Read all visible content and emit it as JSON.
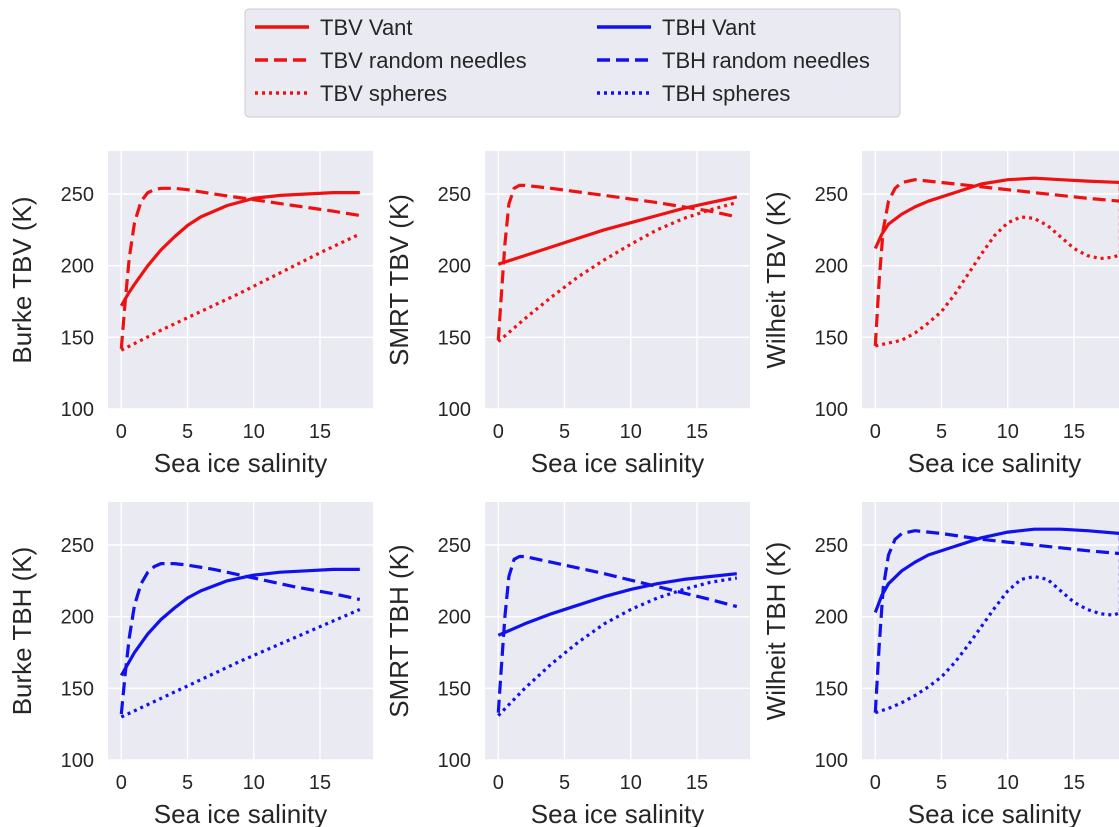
{
  "colors": {
    "TBV": "#ee1111",
    "TBH": "#1111ee",
    "axes_bg": "#eaeaf2",
    "grid": "#ffffff",
    "text": "#262626",
    "legend_bg": "#eaeaf2"
  },
  "legend": {
    "placement": "top-center",
    "entries": [
      {
        "label": "TBV Vant",
        "color": "#ee1111",
        "style": "solid"
      },
      {
        "label": "TBH Vant",
        "color": "#1111ee",
        "style": "solid"
      },
      {
        "label": "TBV random needles",
        "color": "#ee1111",
        "style": "dashed"
      },
      {
        "label": "TBH random needles",
        "color": "#1111ee",
        "style": "dashed"
      },
      {
        "label": "TBV spheres",
        "color": "#ee1111",
        "style": "dotted"
      },
      {
        "label": "TBH spheres",
        "color": "#1111ee",
        "style": "dotted"
      }
    ]
  },
  "chart_data": [
    {
      "type": "line",
      "xlabel": "Sea ice salinity",
      "ylabel": "Burke TBV (K)",
      "xlim": [
        -1,
        19
      ],
      "ylim": [
        100,
        280
      ],
      "xticks": [
        0,
        5,
        10,
        15
      ],
      "yticks": [
        100,
        150,
        200,
        250
      ],
      "grid": true,
      "series": [
        {
          "name": "TBV Vant",
          "color": "#ee1111",
          "style": "solid",
          "x": [
            0,
            0.5,
            1,
            2,
            3,
            4,
            5,
            6,
            8,
            10,
            12,
            14,
            16,
            18
          ],
          "y": [
            172,
            180,
            187,
            200,
            211,
            220,
            228,
            234,
            242,
            247,
            249,
            250,
            251,
            251
          ]
        },
        {
          "name": "TBV random needles",
          "color": "#ee1111",
          "style": "dashed",
          "x": [
            0,
            0.3,
            0.6,
            1,
            1.5,
            2,
            2.5,
            3,
            3.5,
            4,
            5,
            7,
            10,
            13,
            16,
            18
          ],
          "y": [
            142,
            175,
            205,
            230,
            245,
            251,
            253,
            254,
            254,
            254,
            253,
            250,
            246,
            242,
            238,
            235
          ]
        },
        {
          "name": "TBV spheres",
          "color": "#ee1111",
          "style": "dotted",
          "x": [
            0,
            3,
            6,
            9,
            12,
            15,
            18
          ],
          "y": [
            141,
            155,
            168,
            181,
            195,
            209,
            222
          ]
        }
      ]
    },
    {
      "type": "line",
      "xlabel": "Sea ice salinity",
      "ylabel": "SMRT TBV (K)",
      "xlim": [
        -1,
        19
      ],
      "ylim": [
        100,
        280
      ],
      "xticks": [
        0,
        5,
        10,
        15
      ],
      "yticks": [
        100,
        150,
        200,
        250
      ],
      "grid": true,
      "series": [
        {
          "name": "TBV Vant",
          "color": "#ee1111",
          "style": "solid",
          "x": [
            0,
            2,
            4,
            6,
            8,
            10,
            12,
            14,
            16,
            18
          ],
          "y": [
            201,
            207,
            213,
            219,
            225,
            230,
            235,
            240,
            244,
            248
          ]
        },
        {
          "name": "TBV random needles",
          "color": "#ee1111",
          "style": "dashed",
          "x": [
            0,
            0.2,
            0.5,
            0.8,
            1.2,
            1.6,
            2,
            4,
            8,
            12,
            16,
            18
          ],
          "y": [
            148,
            175,
            215,
            243,
            254,
            256,
            256,
            254,
            249,
            244,
            238,
            234
          ]
        },
        {
          "name": "TBV spheres",
          "color": "#ee1111",
          "style": "dotted",
          "x": [
            0,
            2,
            4,
            6,
            8,
            10,
            12,
            14,
            16,
            18
          ],
          "y": [
            147,
            163,
            178,
            192,
            204,
            215,
            225,
            233,
            239,
            244
          ]
        }
      ]
    },
    {
      "type": "line",
      "xlabel": "Sea ice salinity",
      "ylabel": "Wilheit TBV (K)",
      "xlim": [
        -1,
        19
      ],
      "ylim": [
        100,
        280
      ],
      "xticks": [
        0,
        5,
        10,
        15
      ],
      "yticks": [
        100,
        150,
        200,
        250
      ],
      "grid": true,
      "series": [
        {
          "name": "TBV Vant",
          "color": "#ee1111",
          "style": "solid",
          "x": [
            0,
            0.5,
            1,
            2,
            3,
            4,
            6,
            8,
            10,
            12,
            14,
            16,
            18.5
          ],
          "y": [
            212,
            222,
            229,
            236,
            241,
            245,
            251,
            257,
            260,
            261,
            260,
            259,
            258
          ]
        },
        {
          "name": "TBV random needles",
          "color": "#ee1111",
          "style": "dashed",
          "x": [
            0,
            0.3,
            0.6,
            1,
            1.5,
            2,
            3,
            5,
            8,
            12,
            16,
            18.5,
            18.5
          ],
          "y": [
            144,
            190,
            225,
            245,
            254,
            258,
            260,
            258,
            255,
            251,
            247,
            245,
            258
          ]
        },
        {
          "name": "TBV spheres",
          "color": "#ee1111",
          "style": "dotted",
          "x": [
            0,
            1,
            2,
            3,
            4,
            5,
            6,
            7,
            8,
            9,
            10,
            11,
            12,
            13,
            14,
            15,
            16,
            17,
            18,
            18.5,
            18.5
          ],
          "y": [
            144,
            146,
            148,
            153,
            160,
            168,
            180,
            194,
            208,
            221,
            230,
            234,
            233,
            228,
            220,
            212,
            207,
            205,
            206,
            208,
            258
          ]
        }
      ]
    },
    {
      "type": "line",
      "xlabel": "Sea ice salinity",
      "ylabel": "Burke TBH (K)",
      "xlim": [
        -1,
        19
      ],
      "ylim": [
        100,
        280
      ],
      "xticks": [
        0,
        5,
        10,
        15
      ],
      "yticks": [
        100,
        150,
        200,
        250
      ],
      "grid": true,
      "series": [
        {
          "name": "TBH Vant",
          "color": "#1111ee",
          "style": "solid",
          "x": [
            0,
            0.5,
            1,
            2,
            3,
            4,
            5,
            6,
            8,
            10,
            12,
            14,
            16,
            18
          ],
          "y": [
            159,
            167,
            175,
            188,
            198,
            206,
            213,
            218,
            225,
            229,
            231,
            232,
            233,
            233
          ]
        },
        {
          "name": "TBH random needles",
          "color": "#1111ee",
          "style": "dashed",
          "x": [
            0,
            0.3,
            0.6,
            1,
            1.5,
            2,
            2.5,
            3,
            3.5,
            4,
            5,
            7,
            10,
            13,
            16,
            18
          ],
          "y": [
            132,
            160,
            185,
            208,
            223,
            231,
            235,
            237,
            237,
            237,
            236,
            233,
            227,
            221,
            216,
            212
          ]
        },
        {
          "name": "TBH spheres",
          "color": "#1111ee",
          "style": "dotted",
          "x": [
            0,
            3,
            6,
            9,
            12,
            15,
            18
          ],
          "y": [
            130,
            143,
            156,
            169,
            181,
            193,
            205
          ]
        }
      ]
    },
    {
      "type": "line",
      "xlabel": "Sea ice salinity",
      "ylabel": "SMRT TBH (K)",
      "xlim": [
        -1,
        19
      ],
      "ylim": [
        100,
        280
      ],
      "xticks": [
        0,
        5,
        10,
        15
      ],
      "yticks": [
        100,
        150,
        200,
        250
      ],
      "grid": true,
      "series": [
        {
          "name": "TBH Vant",
          "color": "#1111ee",
          "style": "solid",
          "x": [
            0,
            2,
            4,
            6,
            8,
            10,
            12,
            14,
            16,
            18
          ],
          "y": [
            187,
            195,
            202,
            208,
            214,
            219,
            223,
            226,
            228,
            230
          ]
        },
        {
          "name": "TBH random needles",
          "color": "#1111ee",
          "style": "dashed",
          "x": [
            0,
            0.2,
            0.5,
            0.8,
            1.2,
            1.6,
            2,
            4,
            8,
            12,
            16,
            18
          ],
          "y": [
            133,
            160,
            200,
            228,
            240,
            242,
            242,
            238,
            230,
            221,
            212,
            207
          ]
        },
        {
          "name": "TBH spheres",
          "color": "#1111ee",
          "style": "dotted",
          "x": [
            0,
            2,
            4,
            6,
            8,
            10,
            12,
            14,
            16,
            18
          ],
          "y": [
            131,
            150,
            167,
            182,
            195,
            205,
            213,
            219,
            224,
            227
          ]
        }
      ]
    },
    {
      "type": "line",
      "xlabel": "Sea ice salinity",
      "ylabel": "Wilheit TBH (K)",
      "xlim": [
        -1,
        19
      ],
      "ylim": [
        100,
        280
      ],
      "xticks": [
        0,
        5,
        10,
        15
      ],
      "yticks": [
        100,
        150,
        200,
        250
      ],
      "grid": true,
      "series": [
        {
          "name": "TBH Vant",
          "color": "#1111ee",
          "style": "solid",
          "x": [
            0,
            0.5,
            1,
            2,
            3,
            4,
            6,
            8,
            10,
            12,
            14,
            16,
            18.5
          ],
          "y": [
            203,
            215,
            223,
            232,
            238,
            243,
            249,
            255,
            259,
            261,
            261,
            260,
            258
          ]
        },
        {
          "name": "TBH random needles",
          "color": "#1111ee",
          "style": "dashed",
          "x": [
            0,
            0.3,
            0.6,
            1,
            1.5,
            2,
            3,
            5,
            8,
            12,
            16,
            18.5,
            18.5
          ],
          "y": [
            133,
            180,
            220,
            243,
            254,
            258,
            260,
            258,
            254,
            250,
            246,
            244,
            258
          ]
        },
        {
          "name": "TBH spheres",
          "color": "#1111ee",
          "style": "dotted",
          "x": [
            0,
            1,
            2,
            3,
            4,
            5,
            6,
            7,
            8,
            9,
            10,
            11,
            12,
            13,
            14,
            15,
            16,
            17,
            18,
            18.5,
            18.5
          ],
          "y": [
            133,
            136,
            140,
            145,
            151,
            158,
            168,
            180,
            193,
            206,
            218,
            226,
            228,
            226,
            218,
            210,
            205,
            202,
            201,
            203,
            258
          ]
        }
      ]
    }
  ]
}
